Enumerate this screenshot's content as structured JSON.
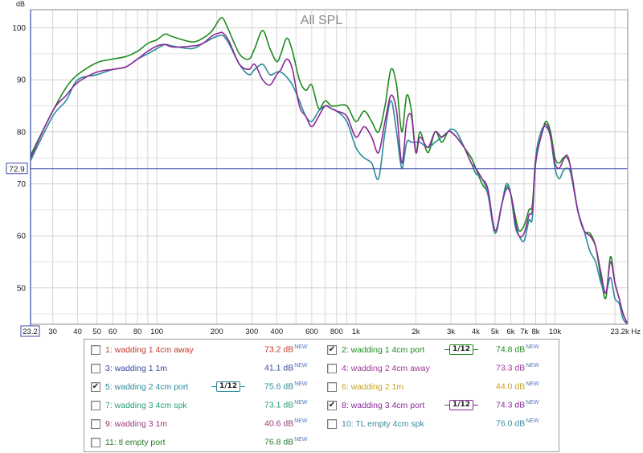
{
  "chart_data": {
    "type": "line",
    "title": "All SPL",
    "ylabel": "dB",
    "xlabel_unit": "Hz",
    "x_scale": "log",
    "xlim": [
      23.2,
      23200
    ],
    "ylim": [
      43,
      103.5
    ],
    "x_tick_labels": [
      {
        "value": 30,
        "label": "30"
      },
      {
        "value": 40,
        "label": "40"
      },
      {
        "value": 50,
        "label": "50"
      },
      {
        "value": 60,
        "label": "60"
      },
      {
        "value": 80,
        "label": "80"
      },
      {
        "value": 100,
        "label": "100"
      },
      {
        "value": 200,
        "label": "200"
      },
      {
        "value": 300,
        "label": "300"
      },
      {
        "value": 400,
        "label": "400"
      },
      {
        "value": 600,
        "label": "600"
      },
      {
        "value": 800,
        "label": "800"
      },
      {
        "value": 1000,
        "label": "1k"
      },
      {
        "value": 2000,
        "label": "2k"
      },
      {
        "value": 3000,
        "label": "3k"
      },
      {
        "value": 4000,
        "label": "4k"
      },
      {
        "value": 5000,
        "label": "5k"
      },
      {
        "value": 6000,
        "label": "6k"
      },
      {
        "value": 7000,
        "label": "7k"
      },
      {
        "value": 8000,
        "label": "8k"
      },
      {
        "value": 10000,
        "label": "10k"
      }
    ],
    "x_start_label": "23.2",
    "x_end_label": "23.2k Hz",
    "y_tick_labels": [
      {
        "value": 50,
        "label": "50"
      },
      {
        "value": 60,
        "label": "60"
      },
      {
        "value": 70,
        "label": "70"
      },
      {
        "value": 80,
        "label": "80"
      },
      {
        "value": 90,
        "label": "90"
      },
      {
        "value": 100,
        "label": "100"
      }
    ],
    "reference_line": {
      "value": 72.9,
      "label": "72.9"
    },
    "grid": true,
    "legend_placement": "bottom",
    "series": [
      {
        "name": "2: wadding 1 4cm port",
        "color": "#1e8a1e",
        "x": [
          23.2,
          30,
          35,
          40,
          50,
          60,
          70,
          80,
          90,
          100,
          110,
          120,
          150,
          170,
          190,
          205,
          215,
          230,
          260,
          290,
          310,
          340,
          370,
          400,
          420,
          450,
          480,
          520,
          560,
          600,
          650,
          700,
          750,
          800,
          900,
          1000,
          1100,
          1200,
          1300,
          1400,
          1500,
          1600,
          1700,
          1800,
          1900,
          2000,
          2100,
          2300,
          2500,
          2700,
          2900,
          3000,
          3200,
          3500,
          3800,
          4000,
          4300,
          4600,
          5000,
          5400,
          5700,
          6000,
          6300,
          6600,
          7000,
          7400,
          7700,
          8000,
          8500,
          9000,
          9500,
          10000,
          10500,
          11000,
          11500,
          12000,
          13000,
          14000,
          15000,
          16000,
          17000,
          18000,
          19000,
          20000,
          21000,
          22000,
          23200
        ],
        "y": [
          75.5,
          84,
          88.5,
          91,
          93.3,
          94,
          94.5,
          95.5,
          97,
          97.7,
          98.8,
          98.3,
          97.3,
          98,
          99.5,
          101.5,
          101.8,
          99.5,
          95,
          94,
          96,
          99.5,
          96,
          93.5,
          95,
          98,
          95.5,
          90,
          88,
          89,
          84.5,
          86,
          85,
          85,
          85,
          82,
          84,
          82,
          80,
          85,
          92,
          89,
          80,
          87,
          84,
          76,
          80,
          76,
          80,
          78,
          80,
          80,
          79,
          77,
          75,
          73,
          70,
          68,
          61,
          66,
          69.5,
          68,
          64,
          61,
          62,
          65,
          66,
          75,
          79,
          82,
          80,
          75,
          74,
          75,
          75,
          73,
          65,
          61,
          60.5,
          58,
          52,
          48,
          56,
          51,
          48,
          45,
          43
        ]
      },
      {
        "name": "5: wadding 2 4cm port",
        "color": "#2a8a9a",
        "x": [
          23.2,
          30,
          35,
          40,
          50,
          60,
          70,
          80,
          90,
          100,
          110,
          120,
          150,
          170,
          190,
          205,
          215,
          230,
          260,
          290,
          310,
          340,
          370,
          400,
          420,
          450,
          480,
          520,
          560,
          600,
          650,
          700,
          750,
          800,
          900,
          1000,
          1100,
          1200,
          1300,
          1400,
          1500,
          1600,
          1700,
          1800,
          1900,
          2000,
          2100,
          2300,
          2500,
          2700,
          2900,
          3000,
          3200,
          3500,
          3800,
          4000,
          4300,
          4600,
          5000,
          5400,
          5700,
          6000,
          6300,
          6600,
          7000,
          7400,
          7700,
          8000,
          8500,
          9000,
          9500,
          10000,
          10500,
          11000,
          11500,
          12000,
          13000,
          14000,
          15000,
          16000,
          17000,
          18000,
          19000,
          20000,
          21000,
          22000,
          23200
        ],
        "y": [
          74.5,
          83,
          86,
          90,
          91,
          92,
          92.5,
          94,
          95,
          96,
          96.8,
          96.5,
          96,
          97,
          98,
          98.5,
          98.5,
          97,
          93,
          91,
          92,
          93,
          91,
          91.5,
          91.5,
          90.5,
          89,
          86,
          83,
          82,
          84,
          85,
          84.5,
          84,
          82,
          77,
          75,
          74,
          71,
          80,
          86,
          80,
          73,
          78,
          78,
          78,
          78,
          77,
          78,
          79,
          80,
          80.5,
          80,
          77,
          74,
          72,
          71,
          68,
          60.5,
          66,
          70,
          68,
          62,
          60,
          59,
          63,
          63.5,
          75,
          80,
          81,
          79,
          73,
          71,
          72.5,
          73,
          72,
          65,
          61,
          57,
          55,
          51,
          49,
          52,
          48,
          47,
          44,
          43
        ]
      },
      {
        "name": "8: wadding 3 4cm port",
        "color": "#8a2a9a",
        "x": [
          23.2,
          30,
          35,
          40,
          50,
          60,
          70,
          80,
          90,
          100,
          110,
          120,
          150,
          170,
          190,
          205,
          215,
          230,
          260,
          290,
          310,
          340,
          370,
          400,
          420,
          450,
          480,
          520,
          560,
          600,
          650,
          700,
          750,
          800,
          900,
          1000,
          1100,
          1200,
          1300,
          1400,
          1500,
          1600,
          1700,
          1800,
          1900,
          2000,
          2100,
          2300,
          2500,
          2700,
          2900,
          3000,
          3200,
          3500,
          3800,
          4000,
          4300,
          4600,
          5000,
          5400,
          5700,
          6000,
          6300,
          6600,
          7000,
          7400,
          7700,
          8000,
          8500,
          9000,
          9500,
          10000,
          10500,
          11000,
          11500,
          12000,
          13000,
          14000,
          15000,
          16000,
          17000,
          18000,
          19000,
          20000,
          21000,
          22000,
          23200
        ],
        "y": [
          75,
          84,
          87,
          89.5,
          91.5,
          92,
          92.5,
          94,
          95.5,
          96.5,
          96.8,
          96.3,
          96.5,
          97,
          98.5,
          99,
          99,
          97.5,
          93,
          92,
          93,
          90,
          89,
          91,
          92,
          94,
          92,
          85,
          83,
          81,
          83,
          85,
          84.5,
          84,
          83,
          79,
          81,
          79,
          76,
          82,
          87,
          84,
          74,
          82,
          83,
          76,
          79,
          77,
          80,
          79,
          80,
          80,
          79,
          77,
          74,
          73,
          71,
          69,
          61,
          66,
          69,
          68,
          63,
          60,
          60.5,
          64,
          65,
          74,
          79,
          81.5,
          79,
          74,
          73,
          74.5,
          75.5,
          73,
          65,
          61,
          60,
          58,
          53,
          49,
          55,
          51,
          48,
          45,
          43
        ]
      }
    ]
  },
  "legend": {
    "items": [
      {
        "label": "1: wadding 1 4cm away",
        "value": "73.2 dB",
        "checked": false,
        "color": "#c0392b"
      },
      {
        "label": "2: wadding 1 4cm port",
        "value": "74.8 dB",
        "checked": true,
        "color": "#1e8a1e",
        "smoothing": "1/12"
      },
      {
        "label": "3: wadding 1 1m",
        "value": "41.1 dB",
        "checked": false,
        "color": "#3b4aa0"
      },
      {
        "label": "4: wadding 2 4cm away",
        "value": "73.3 dB",
        "checked": false,
        "color": "#9a3a9a"
      },
      {
        "label": "5: wadding 2 4cm port",
        "value": "75.6 dB",
        "checked": true,
        "color": "#2a8a9a",
        "smoothing": "1/12"
      },
      {
        "label": "6: wadding 2 1m",
        "value": "44.0 dB",
        "checked": false,
        "color": "#c8a020"
      },
      {
        "label": "7: wadding 3 4cm spk",
        "value": "73.1 dB",
        "checked": false,
        "color": "#2aa070"
      },
      {
        "label": "8: wadding 3 4cm port",
        "value": "74.3 dB",
        "checked": true,
        "color": "#8a2a9a",
        "smoothing": "1/12"
      },
      {
        "label": "9: wadding 3 1m",
        "value": "40.6 dB",
        "checked": false,
        "color": "#9a3a7a"
      },
      {
        "label": "10: TL empty 4cm spk",
        "value": "76.0 dB",
        "checked": false,
        "color": "#3a8aa0"
      },
      {
        "label": "11: tl empty port",
        "value": "76.8 dB",
        "checked": false,
        "color": "#2a7a2a"
      }
    ],
    "new_badge": "NEW"
  }
}
